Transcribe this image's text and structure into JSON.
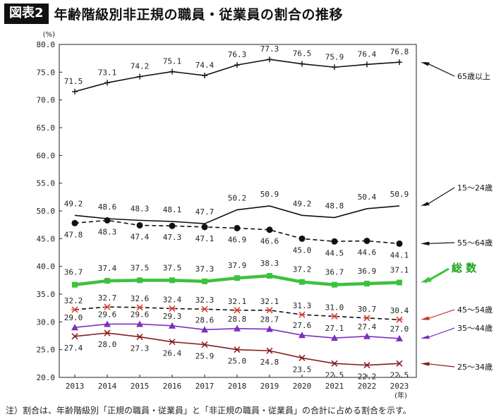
{
  "header": {
    "badge": "図表2",
    "title": "年齢階級別非正規の職員・従業員の割合の推移"
  },
  "note": "注）割合は、年齢階級別「正規の職員・従業員」と「非正規の職員・従業員」の合計に占める割合を示す。",
  "chart_data": {
    "type": "line",
    "x": [
      "2013",
      "2014",
      "2015",
      "2016",
      "2017",
      "2018",
      "2019",
      "2020",
      "2021",
      "2022",
      "2023"
    ],
    "x_unit": "(年)",
    "y_unit": "(%)",
    "ylim": [
      20,
      80
    ],
    "yticks": [
      "20.0",
      "25.0",
      "30.0",
      "35.0",
      "40.0",
      "45.0",
      "50.0",
      "55.0",
      "60.0",
      "65.0",
      "70.0",
      "75.0",
      "80.0"
    ],
    "grid": false,
    "series": [
      {
        "name": "65歳以上",
        "values": [
          71.5,
          73.1,
          74.2,
          75.1,
          74.4,
          76.3,
          77.3,
          76.5,
          75.9,
          76.4,
          76.8
        ],
        "labels": [
          "71.5",
          "73.1",
          "74.2",
          "75.1",
          "74.4",
          "76.3",
          "77.3",
          "76.5",
          "75.9",
          "76.4",
          "76.8"
        ],
        "color": "#111111",
        "marker": "plus",
        "dash": false,
        "label_pos": "above"
      },
      {
        "name": "15〜24歳",
        "values": [
          49.2,
          48.6,
          48.3,
          48.1,
          47.7,
          50.2,
          50.9,
          49.2,
          48.8,
          50.4,
          50.9
        ],
        "labels": [
          "49.2",
          "48.6",
          "48.3",
          "48.1",
          "47.7",
          "50.2",
          "50.9",
          "49.2",
          "48.8",
          "50.4",
          "50.9"
        ],
        "color": "#111111",
        "marker": "none",
        "dash": false,
        "label_pos": "above"
      },
      {
        "name": "55〜64歳",
        "values": [
          47.8,
          48.3,
          47.4,
          47.3,
          47.1,
          46.9,
          46.6,
          45.0,
          44.5,
          44.6,
          44.1
        ],
        "labels": [
          "47.8",
          "48.3",
          "47.4",
          "47.3",
          "47.1",
          "46.9",
          "46.6",
          "45.0",
          "44.5",
          "44.6",
          "44.1"
        ],
        "color": "#111111",
        "marker": "dot",
        "dash": true,
        "label_pos": "below"
      },
      {
        "name": "総 数",
        "values": [
          36.7,
          37.4,
          37.5,
          37.5,
          37.3,
          37.9,
          38.3,
          37.2,
          36.7,
          36.9,
          37.1
        ],
        "labels": [
          "36.7",
          "37.4",
          "37.5",
          "37.5",
          "37.3",
          "37.9",
          "38.3",
          "37.2",
          "36.7",
          "36.9",
          "37.1"
        ],
        "color": "#3cc23c",
        "marker": "square",
        "dash": false,
        "label_pos": "above"
      },
      {
        "name": "45〜54歳",
        "values": [
          32.2,
          32.7,
          32.6,
          32.4,
          32.3,
          32.1,
          32.1,
          31.3,
          31.0,
          30.7,
          30.4
        ],
        "labels": [
          "32.2",
          "32.7",
          "32.6",
          "32.4",
          "32.3",
          "32.1",
          "32.1",
          "31.3",
          "31.0",
          "30.7",
          "30.4"
        ],
        "color": "#111111",
        "marker": "star",
        "marker_color": "#d43a2a",
        "dash": true,
        "label_pos": "above"
      },
      {
        "name": "35〜44歳",
        "values": [
          29.0,
          29.6,
          29.6,
          29.3,
          28.6,
          28.8,
          28.7,
          27.6,
          27.1,
          27.4,
          27.0
        ],
        "labels": [
          "29.0",
          "29.6",
          "29.6",
          "29.3",
          "28.6",
          "28.8",
          "28.7",
          "27.6",
          "27.1",
          "27.4",
          "27.0"
        ],
        "color": "#7b2fbf",
        "marker": "triangle",
        "dash": false,
        "label_pos": "below"
      },
      {
        "name": "25〜34歳",
        "values": [
          27.4,
          28.0,
          27.3,
          26.4,
          25.9,
          25.0,
          24.8,
          23.5,
          22.5,
          22.2,
          22.5
        ],
        "labels": [
          "27.4",
          "28.0",
          "27.3",
          "26.4",
          "25.9",
          "25.0",
          "24.8",
          "23.5",
          "22.5",
          "22.2",
          "22.5"
        ],
        "color": "#8a1a1a",
        "marker": "cross",
        "dash": false,
        "label_pos": "below"
      }
    ]
  }
}
